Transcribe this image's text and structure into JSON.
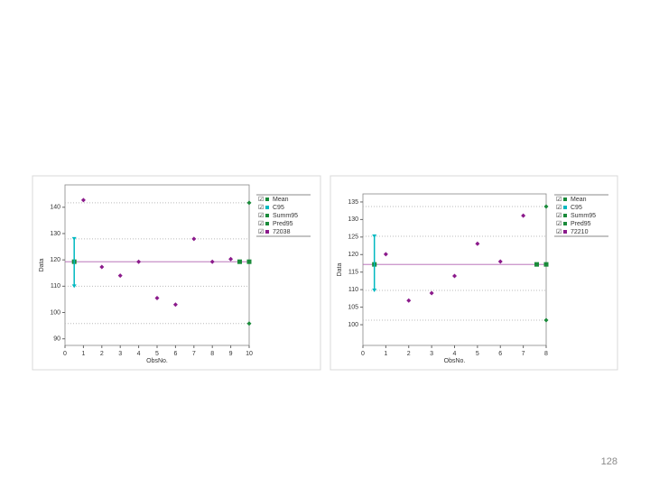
{
  "page_number": "128",
  "chart_data": [
    {
      "type": "scatter",
      "x_label": "ObsNo.",
      "y_label": "Data",
      "xlim": [
        0,
        10
      ],
      "xticks": [
        0,
        1,
        2,
        3,
        4,
        5,
        6,
        7,
        8,
        9,
        10
      ],
      "ylim": [
        87.5,
        148.5
      ],
      "yticks": [
        90,
        100,
        110,
        120,
        130,
        140
      ],
      "x": [
        1,
        2,
        3,
        4,
        5,
        6,
        7,
        8,
        9
      ],
      "series": [
        {
          "name": "Mean",
          "color": "#1a8a3a",
          "values": [
            119.3
          ]
        },
        {
          "name": "C95",
          "color": "#00b8c0",
          "values": [
            110,
            128
          ]
        },
        {
          "name": "Summ95",
          "color": "#1a8a3a",
          "values": []
        },
        {
          "name": "Pred95",
          "color": "#1a8a3a",
          "values": [
            95.8,
            141.7
          ]
        },
        {
          "name": "72038",
          "color": "#8b1a8b",
          "values": [
            142.7,
            117.3,
            114,
            119.3,
            105.5,
            103,
            128,
            119.3,
            120.3
          ]
        }
      ]
    },
    {
      "type": "scatter",
      "x_label": "ObsNo.",
      "y_label": "Data",
      "xlim": [
        0,
        8
      ],
      "xticks": [
        0,
        1,
        2,
        3,
        4,
        5,
        6,
        7,
        8
      ],
      "ylim": [
        94.1,
        137.3
      ],
      "yticks": [
        100,
        105,
        110,
        115,
        120,
        125,
        130,
        135
      ],
      "x": [
        1,
        2,
        3,
        4,
        5,
        6,
        7
      ],
      "series": [
        {
          "name": "Mean",
          "color": "#1a8a3a",
          "values": [
            117.2
          ]
        },
        {
          "name": "C95",
          "color": "#00b8c0",
          "values": [
            109.8,
            125.2
          ]
        },
        {
          "name": "Summ95",
          "color": "#1a8a3a",
          "values": []
        },
        {
          "name": "Pred95",
          "color": "#1a8a3a",
          "values": [
            101.3,
            133.7
          ]
        },
        {
          "name": "72210",
          "color": "#8b1a8b",
          "values": [
            120.1,
            106.9,
            109,
            113.9,
            123.1,
            118,
            131.1
          ]
        }
      ]
    }
  ]
}
